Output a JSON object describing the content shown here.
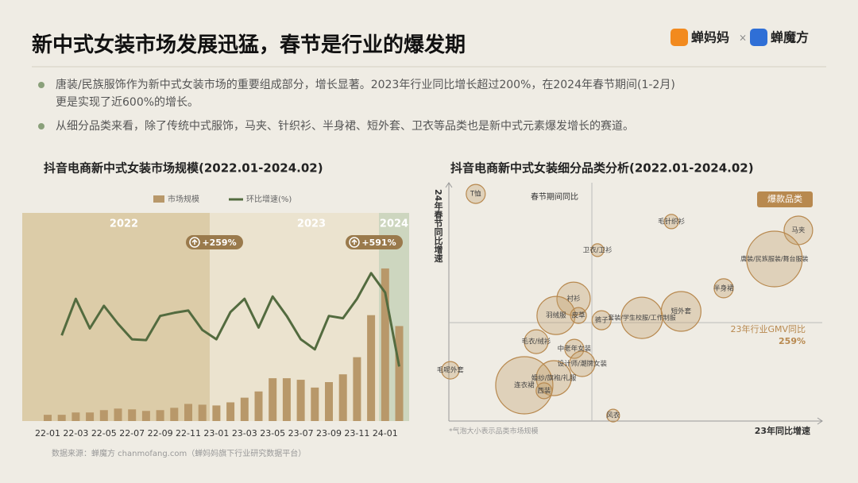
{
  "header": {
    "title": "新中式女装市场发展迅猛，春节是行业的爆发期",
    "logos": [
      "蝉妈妈",
      "×",
      "蝉魔方"
    ]
  },
  "bullets": [
    "唐装/民族服饰作为新中式女装市场的重要组成部分，增长显著。2023年行业同比增长超过200%，在2024年春节期间(1-2月)更是实现了近600%的增长。",
    "从细分品类来看，除了传统中式服饰，马夹、针织衫、半身裙、短外套、卫衣等品类也是新中式元素爆发增长的赛道。"
  ],
  "source": "数据来源：蝉魔方 chanmofang.com（蝉妈妈旗下行业研究数据平台）",
  "chart_data": [
    {
      "type": "combo",
      "title": "抖音电商新中式女装市场规模(2022.01-2024.02)",
      "categories": [
        "22-01",
        null,
        "22-03",
        null,
        "22-05",
        null,
        "22-07",
        null,
        "22-09",
        null,
        "22-11",
        null,
        "23-01",
        null,
        "23-03",
        null,
        "23-05",
        null,
        "23-07",
        null,
        "23-09",
        null,
        "23-11",
        null,
        "24-01",
        null
      ],
      "series": [
        {
          "name": "市场规模",
          "type": "bar",
          "color": "#b8986a",
          "values": [
            8,
            8,
            11,
            11,
            14,
            16,
            15,
            13,
            14,
            17,
            22,
            21,
            20,
            24,
            30,
            38,
            55,
            55,
            53,
            43,
            50,
            60,
            82,
            136,
            196,
            122
          ]
        },
        {
          "name": "环比增速(%)",
          "type": "line",
          "color": "#536b3f",
          "axis": "y2",
          "values": [
            null,
            110,
            157,
            119,
            148,
            125,
            105,
            104,
            135,
            139,
            142,
            117,
            105,
            140,
            157,
            120,
            160,
            135,
            105,
            92,
            135,
            132,
            157,
            190,
            165,
            70
          ]
        }
      ],
      "ylim": [
        0,
        200
      ],
      "y2lim": [
        0,
        200
      ],
      "periods": [
        "2022",
        "2023",
        "2024"
      ],
      "annotations": [
        "+259%",
        "+591%"
      ]
    },
    {
      "type": "bubble",
      "title": "抖音电商新中式女装细分品类分析(2022.01-2024.02)",
      "x_label": "23年同比增速",
      "y_label": "24年春节同比增速",
      "annotations": [
        "春节期间同比",
        "爆款品类",
        "23年行业GMV同比",
        "259%"
      ],
      "note": "*气泡大小表示品类市场规模",
      "categories": [
        "T恤",
        "毛针织衫",
        "马夹",
        "卫衣/卫衫",
        "唐装/民族服装/舞台服装",
        "半身裙",
        "衬衫",
        "短外套",
        "羽绒服",
        "皮草",
        "裤子",
        "套装/学生校服/工作制服",
        "毛衣/绒衫",
        "中老年女装",
        "设计师/潮牌女装",
        "婚纱/旗袍/礼服",
        "连衣裙",
        "西装",
        "毛呢外套",
        "风衣"
      ],
      "x": [
        7.2,
        59.6,
        93.6,
        39.8,
        87.2,
        73.6,
        33.4,
        62.2,
        28.7,
        34.7,
        40.9,
        51.7,
        23.4,
        33.6,
        35.7,
        28.1,
        20.2,
        25.5,
        0.4,
        44.0
      ],
      "values": [
        95.3,
        83.7,
        80,
        71.7,
        68,
        55.7,
        51.3,
        46,
        44.3,
        44.3,
        42.3,
        43.3,
        33.3,
        30.3,
        24,
        18,
        15,
        12.7,
        21.3,
        2.3
      ],
      "sizes": [
        12,
        9,
        18,
        8,
        35,
        12,
        21,
        25,
        24,
        10,
        12,
        26,
        15,
        12,
        16,
        22,
        36,
        10,
        11,
        8
      ],
      "color": "#c4a06e",
      "xlim": [
        0,
        100
      ],
      "ylim": [
        0,
        100
      ],
      "ref_x": 38.3,
      "ref_y": 41.3
    }
  ]
}
